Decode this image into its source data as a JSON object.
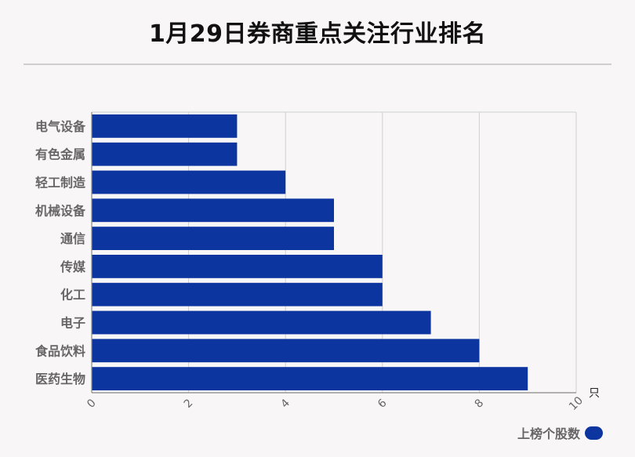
{
  "title": "1月29日券商重点关注行业排名",
  "colors": {
    "bar": "#0d35a0",
    "grid": "#d0d0d0",
    "axis": "#888888",
    "label": "#666666"
  },
  "chart_data": {
    "type": "bar",
    "orientation": "horizontal",
    "title": "1月29日券商重点关注行业排名",
    "categories": [
      "电气设备",
      "有色金属",
      "轻工制造",
      "机械设备",
      "通信",
      "传媒",
      "化工",
      "电子",
      "食品饮料",
      "医药生物"
    ],
    "series": [
      {
        "name": "上榜个股数",
        "values": [
          3,
          3,
          4,
          5,
          5,
          6,
          6,
          7,
          8,
          9
        ]
      }
    ],
    "xlim": [
      0,
      10
    ],
    "xticks": [
      "0",
      "2",
      "4",
      "6",
      "8",
      "10"
    ],
    "xunit": "只",
    "grid": true,
    "legend_position": "bottom-right"
  }
}
